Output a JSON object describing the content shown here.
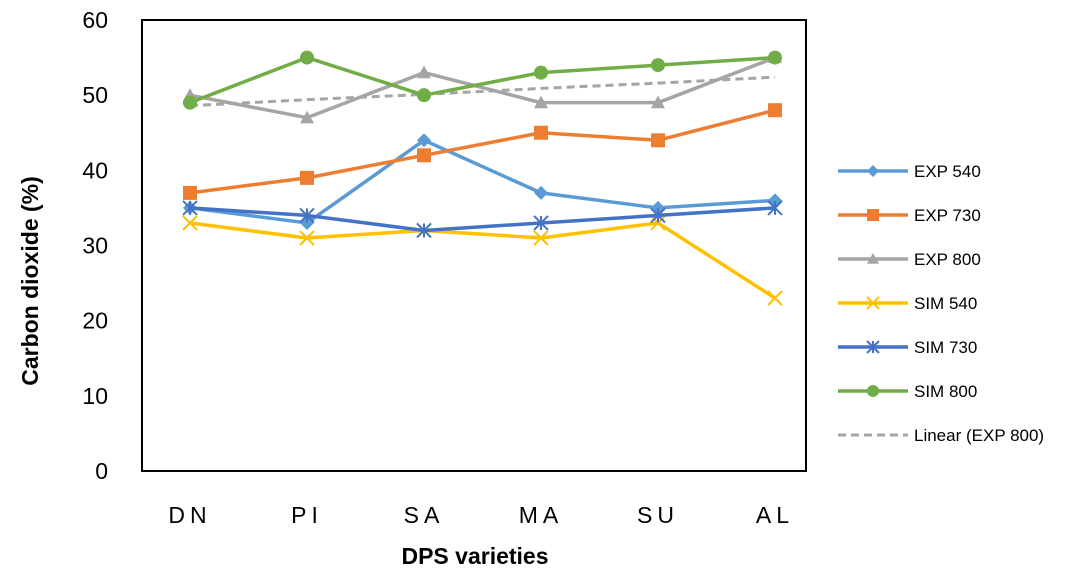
{
  "chart_data": {
    "type": "line",
    "title": "",
    "xlabel": "DPS varieties",
    "ylabel": "Carbon dioxide (%)",
    "categories": [
      "DN",
      "PI",
      "SA",
      "MA",
      "SU",
      "AL"
    ],
    "ylim": [
      0,
      60
    ],
    "yticks": [
      0,
      10,
      20,
      30,
      40,
      50,
      60
    ],
    "grid": false,
    "legend_position": "right",
    "series": [
      {
        "name": "EXP 540",
        "color": "#5B9BD5",
        "marker": "diamond",
        "values": [
          35,
          33,
          44,
          37,
          35,
          36
        ]
      },
      {
        "name": "EXP 730",
        "color": "#ED7D31",
        "marker": "square",
        "values": [
          37,
          39,
          42,
          45,
          44,
          48
        ]
      },
      {
        "name": "EXP 800",
        "color": "#A5A5A5",
        "marker": "triangle",
        "values": [
          50,
          47,
          53,
          49,
          49,
          55
        ]
      },
      {
        "name": "SIM 540",
        "color": "#FFC000",
        "marker": "x",
        "values": [
          33,
          31,
          32,
          31,
          33,
          23
        ]
      },
      {
        "name": "SIM 730",
        "color": "#4472C4",
        "marker": "star",
        "values": [
          35,
          34,
          32,
          33,
          34,
          35
        ]
      },
      {
        "name": "SIM 800",
        "color": "#70AD47",
        "marker": "circle",
        "values": [
          49,
          55,
          50,
          53,
          54,
          55
        ]
      }
    ],
    "trendline": {
      "name": "Linear (EXP 800)",
      "color": "#A5A5A5",
      "style": "dashed",
      "values": [
        48.6,
        49.4,
        50.1,
        50.9,
        51.6,
        52.4
      ]
    }
  }
}
